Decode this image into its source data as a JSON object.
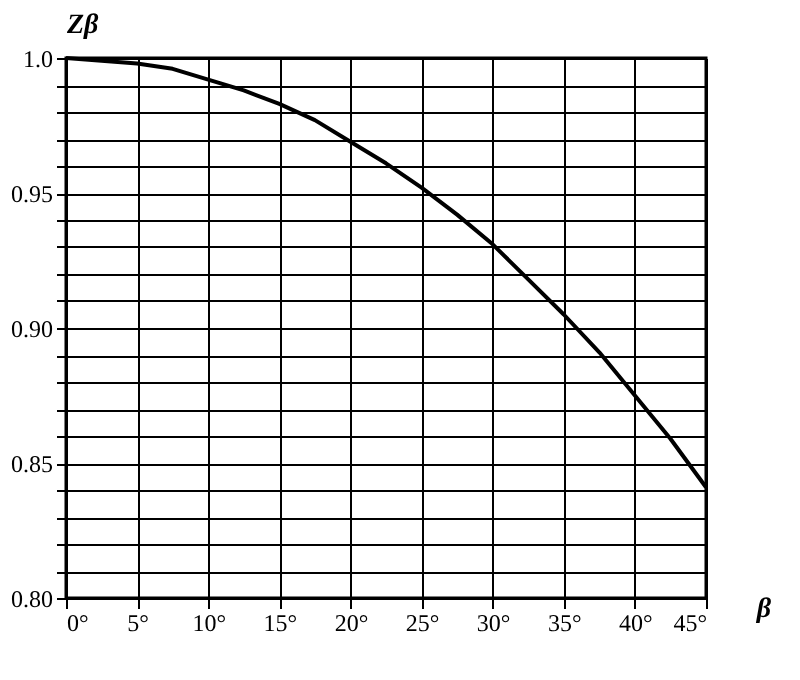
{
  "chart_data": {
    "type": "line",
    "xlabel": "β",
    "ylabel": "Zβ",
    "x": [
      0,
      2.5,
      5,
      7.5,
      10,
      12.5,
      15,
      17.5,
      20,
      22.5,
      25,
      27.5,
      30,
      32.5,
      35,
      37.5,
      40,
      42.5,
      45
    ],
    "series": [
      {
        "color": "#000000",
        "values": [
          1.0,
          0.999,
          0.998,
          0.996,
          0.992,
          0.988,
          0.983,
          0.977,
          0.969,
          0.961,
          0.952,
          0.942,
          0.931,
          0.918,
          0.905,
          0.891,
          0.875,
          0.859,
          0.841
        ]
      }
    ],
    "xlim": [
      0,
      45
    ],
    "ylim": [
      0.8,
      1.0
    ],
    "xticks": [
      {
        "value": 0,
        "label": "0°"
      },
      {
        "value": 5,
        "label": "5°"
      },
      {
        "value": 10,
        "label": "10°"
      },
      {
        "value": 15,
        "label": "15°"
      },
      {
        "value": 20,
        "label": "20°"
      },
      {
        "value": 25,
        "label": "25°"
      },
      {
        "value": 30,
        "label": "30°"
      },
      {
        "value": 35,
        "label": "35°"
      },
      {
        "value": 40,
        "label": "40°"
      },
      {
        "value": 45,
        "label": "45°"
      }
    ],
    "yticks": [
      {
        "value": 0.8,
        "label": "0.80"
      },
      {
        "value": 0.81,
        "label": null
      },
      {
        "value": 0.82,
        "label": null
      },
      {
        "value": 0.83,
        "label": null
      },
      {
        "value": 0.84,
        "label": null
      },
      {
        "value": 0.85,
        "label": "0.85"
      },
      {
        "value": 0.86,
        "label": null
      },
      {
        "value": 0.87,
        "label": null
      },
      {
        "value": 0.88,
        "label": null
      },
      {
        "value": 0.89,
        "label": null
      },
      {
        "value": 0.9,
        "label": "0.90"
      },
      {
        "value": 0.91,
        "label": null
      },
      {
        "value": 0.92,
        "label": null
      },
      {
        "value": 0.93,
        "label": null
      },
      {
        "value": 0.94,
        "label": null
      },
      {
        "value": 0.95,
        "label": "0.95"
      },
      {
        "value": 0.96,
        "label": null
      },
      {
        "value": 0.97,
        "label": null
      },
      {
        "value": 0.98,
        "label": null
      },
      {
        "value": 0.99,
        "label": null
      },
      {
        "value": 1.0,
        "label": "1.0"
      }
    ],
    "grid": true,
    "marker": "none",
    "line_style": "solid"
  }
}
